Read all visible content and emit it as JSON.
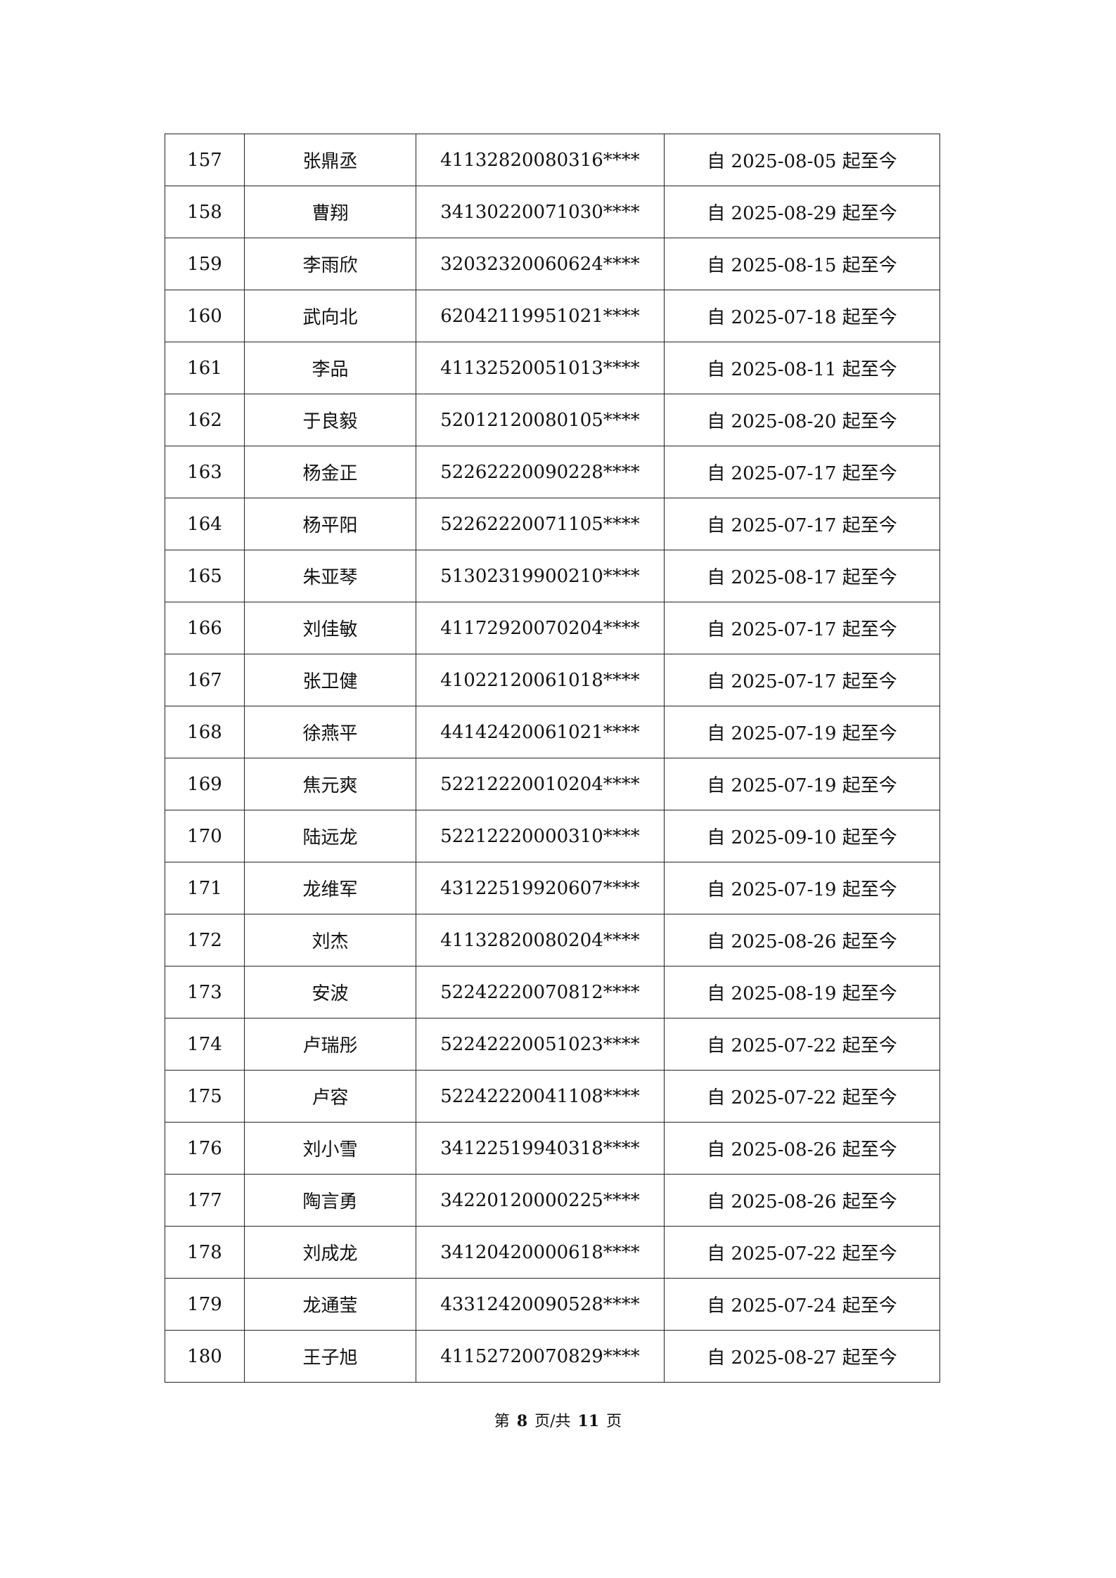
{
  "table": {
    "rows": [
      [
        "157",
        "张鼎丞",
        "41132820080316****",
        "自 2025-08-05 起至今"
      ],
      [
        "158",
        "曹翔",
        "34130220071030****",
        "自 2025-08-29 起至今"
      ],
      [
        "159",
        "李雨欣",
        "32032320060624****",
        "自 2025-08-15 起至今"
      ],
      [
        "160",
        "武向北",
        "62042119951021****",
        "自 2025-07-18 起至今"
      ],
      [
        "161",
        "李品",
        "41132520051013****",
        "自 2025-08-11 起至今"
      ],
      [
        "162",
        "于良毅",
        "52012120080105****",
        "自 2025-08-20 起至今"
      ],
      [
        "163",
        "杨金正",
        "52262220090228****",
        "自 2025-07-17 起至今"
      ],
      [
        "164",
        "杨平阳",
        "52262220071105****",
        "自 2025-07-17 起至今"
      ],
      [
        "165",
        "朱亚琴",
        "51302319900210****",
        "自 2025-08-17 起至今"
      ],
      [
        "166",
        "刘佳敏",
        "41172920070204****",
        "自 2025-07-17 起至今"
      ],
      [
        "167",
        "张卫健",
        "41022120061018****",
        "自 2025-07-17 起至今"
      ],
      [
        "168",
        "徐燕平",
        "44142420061021****",
        "自 2025-07-19 起至今"
      ],
      [
        "169",
        "焦元爽",
        "52212220010204****",
        "自 2025-07-19 起至今"
      ],
      [
        "170",
        "陆远龙",
        "52212220000310****",
        "自 2025-09-10 起至今"
      ],
      [
        "171",
        "龙维军",
        "43122519920607****",
        "自 2025-07-19 起至今"
      ],
      [
        "172",
        "刘杰",
        "41132820080204****",
        "自 2025-08-26 起至今"
      ],
      [
        "173",
        "安波",
        "52242220070812****",
        "自 2025-08-19 起至今"
      ],
      [
        "174",
        "卢瑞彤",
        "52242220051023****",
        "自 2025-07-22 起至今"
      ],
      [
        "175",
        "卢容",
        "52242220041108****",
        "自 2025-07-22 起至今"
      ],
      [
        "176",
        "刘小雪",
        "34122519940318****",
        "自 2025-08-26 起至今"
      ],
      [
        "177",
        "陶言勇",
        "34220120000225****",
        "自 2025-08-26 起至今"
      ],
      [
        "178",
        "刘成龙",
        "34120420000618****",
        "自 2025-07-22 起至今"
      ],
      [
        "179",
        "龙通莹",
        "43312420090528****",
        "自 2025-07-24 起至今"
      ],
      [
        "180",
        "王子旭",
        "41152720070829****",
        "自 2025-08-27 起至今"
      ]
    ]
  },
  "footer": {
    "prefix": "第",
    "page": "8",
    "middle": "页/共",
    "total": "11",
    "suffix": "页"
  }
}
